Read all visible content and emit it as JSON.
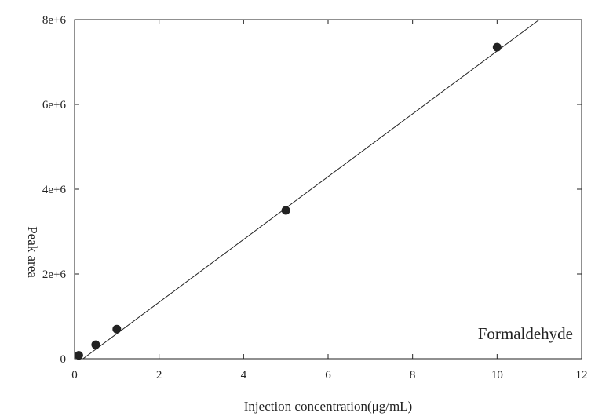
{
  "chart_data": {
    "type": "scatter",
    "title": "",
    "xlabel": "Injection concentration(μg/mL)",
    "ylabel": "Peak area",
    "xlim": [
      0,
      12
    ],
    "ylim": [
      0,
      8000000
    ],
    "x_ticks": [
      0,
      2,
      4,
      6,
      8,
      10,
      12
    ],
    "x_tick_labels": [
      "0",
      "2",
      "4",
      "6",
      "8",
      "10",
      "12"
    ],
    "y_ticks": [
      0,
      2000000,
      4000000,
      6000000,
      8000000
    ],
    "y_tick_labels": [
      "0",
      "2e+6",
      "4e+6",
      "6e+6",
      "8e+6"
    ],
    "grid": false,
    "series": [
      {
        "x": [
          0.1,
          0.5,
          1,
          5,
          10
        ],
        "y": [
          80000,
          330000,
          700000,
          3500000,
          7350000
        ],
        "marker": "filled-circle",
        "color": "#222222"
      }
    ],
    "fit_line": {
      "x": [
        0.2,
        11
      ],
      "y": [
        0,
        8000000
      ],
      "color": "#222222"
    },
    "annotations": [
      {
        "text": "Formaldehyde",
        "position": "bottom-right"
      }
    ]
  }
}
